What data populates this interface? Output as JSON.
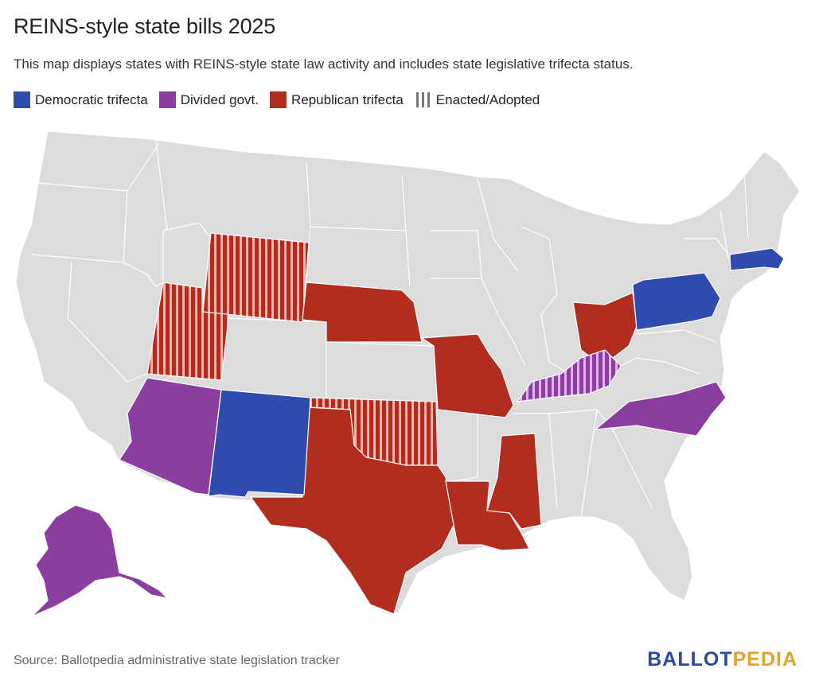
{
  "title": "REINS-style state bills 2025",
  "subtitle": "This map displays states with REINS-style state law activity and includes state legislative trifecta status.",
  "legend": [
    {
      "label": "Democratic trifecta",
      "color": "#2f4bad",
      "pattern": "solid"
    },
    {
      "label": "Divided govt.",
      "color": "#8c3ea0",
      "pattern": "solid"
    },
    {
      "label": "Republican trifecta",
      "color": "#b02d1f",
      "pattern": "solid"
    },
    {
      "label": "Enacted/Adopted",
      "color": "#888888",
      "pattern": "stripes"
    }
  ],
  "colors": {
    "democratic": "#2f4bad",
    "divided": "#8c3ea0",
    "republican": "#b02d1f",
    "none": "#dcdcdc",
    "border": "#ffffff"
  },
  "states": [
    {
      "name": "Democratic trifecta",
      "list": [
        "New Mexico",
        "Pennsylvania",
        "Massachusetts"
      ]
    },
    {
      "name": "Divided govt.",
      "list": [
        "Arizona",
        "Alaska",
        "Kentucky",
        "North Carolina"
      ]
    },
    {
      "name": "Republican trifecta",
      "list": [
        "Utah",
        "Wyoming",
        "Nebraska",
        "Missouri",
        "Ohio",
        "Oklahoma",
        "Texas",
        "Louisiana",
        "Mississippi"
      ]
    },
    {
      "name": "Enacted/Adopted",
      "list": [
        "Utah",
        "Wyoming",
        "Oklahoma",
        "Kentucky"
      ]
    }
  ],
  "footer": {
    "source": "Source: Ballotpedia administrative state legislation tracker",
    "brand_part1": "BALLOT",
    "brand_part2": "PEDIA"
  }
}
